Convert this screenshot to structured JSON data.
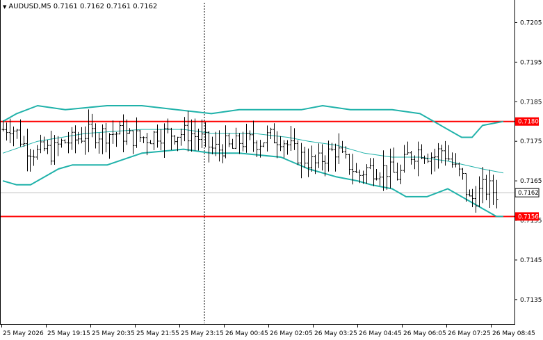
{
  "header": {
    "symbol": "AUDUSD,M5",
    "quote": "0.7161 0.7162 0.7161 0.7162",
    "dropdown_icon": "triangle-down"
  },
  "colors": {
    "background": "#ffffff",
    "frame": "#000000",
    "candle": "#000000",
    "bands": "#20b2aa",
    "level": "#ff0000",
    "current_line": "#c0c0c0"
  },
  "price_axis": {
    "ticks": [
      "0.7205",
      "0.7195",
      "0.7185",
      "0.7175",
      "0.7165",
      "0.7155",
      "0.7145",
      "0.7135"
    ],
    "ymin": 0.7129,
    "ymax": 0.721
  },
  "time_axis": {
    "labels": [
      "25 May 2026",
      "25 May 19:15",
      "25 May 20:35",
      "25 May 21:55",
      "25 May 23:15",
      "26 May 00:45",
      "26 May 02:05",
      "26 May 03:25",
      "26 May 04:45",
      "26 May 06:05",
      "26 May 07:25",
      "26 May 08:45"
    ]
  },
  "levels": [
    {
      "price": 0.718,
      "label": "0.7180"
    },
    {
      "price": 0.7156,
      "label": "0.7156"
    }
  ],
  "current_price": {
    "price": 0.7162,
    "label": "0.7162"
  },
  "period_separator": {
    "label": "26 May 00:00"
  },
  "chart_data": {
    "type": "candlestick",
    "symbol": "AUDUSD",
    "timeframe": "M5",
    "close_path": [
      [
        0,
        0.7178
      ],
      [
        10,
        0.7179
      ],
      [
        20,
        0.7177
      ],
      [
        30,
        0.7174
      ],
      [
        40,
        0.7173
      ],
      [
        50,
        0.7172
      ],
      [
        60,
        0.7173
      ],
      [
        70,
        0.7172
      ],
      [
        80,
        0.7174
      ],
      [
        90,
        0.7175
      ],
      [
        100,
        0.7175
      ],
      [
        110,
        0.7176
      ],
      [
        120,
        0.7177
      ],
      [
        130,
        0.7177
      ],
      [
        140,
        0.7177
      ],
      [
        150,
        0.7177
      ],
      [
        160,
        0.7177
      ],
      [
        170,
        0.7177
      ],
      [
        180,
        0.7176
      ],
      [
        190,
        0.7176
      ],
      [
        200,
        0.7176
      ],
      [
        210,
        0.7176
      ],
      [
        220,
        0.7177
      ],
      [
        230,
        0.7177
      ],
      [
        240,
        0.7177
      ],
      [
        250,
        0.7177
      ],
      [
        260,
        0.7177
      ],
      [
        270,
        0.7177
      ],
      [
        280,
        0.7176
      ],
      [
        290,
        0.7175
      ],
      [
        300,
        0.7173
      ],
      [
        310,
        0.7173
      ],
      [
        320,
        0.7174
      ],
      [
        330,
        0.7173
      ],
      [
        340,
        0.7175
      ],
      [
        350,
        0.7175
      ],
      [
        360,
        0.7175
      ],
      [
        370,
        0.7175
      ],
      [
        380,
        0.7176
      ],
      [
        390,
        0.7176
      ],
      [
        400,
        0.7176
      ],
      [
        410,
        0.7174
      ],
      [
        420,
        0.7172
      ],
      [
        430,
        0.7171
      ],
      [
        440,
        0.717
      ],
      [
        450,
        0.7169
      ],
      [
        460,
        0.7171
      ],
      [
        470,
        0.7172
      ],
      [
        480,
        0.7173
      ],
      [
        490,
        0.717
      ],
      [
        500,
        0.7169
      ],
      [
        510,
        0.7166
      ],
      [
        520,
        0.7168
      ],
      [
        530,
        0.7168
      ],
      [
        540,
        0.7168
      ],
      [
        550,
        0.7168
      ],
      [
        560,
        0.7167
      ],
      [
        570,
        0.7166
      ],
      [
        580,
        0.7171
      ],
      [
        590,
        0.7172
      ],
      [
        600,
        0.7173
      ],
      [
        610,
        0.7172
      ],
      [
        620,
        0.7171
      ],
      [
        630,
        0.7173
      ],
      [
        640,
        0.7171
      ],
      [
        650,
        0.7168
      ],
      [
        660,
        0.7166
      ],
      [
        670,
        0.716
      ],
      [
        680,
        0.7161
      ],
      [
        690,
        0.7163
      ],
      [
        700,
        0.7163
      ],
      [
        710,
        0.7162
      ]
    ],
    "bands": {
      "upper": [
        [
          0,
          0.718
        ],
        [
          20,
          0.7182
        ],
        [
          50,
          0.7184
        ],
        [
          90,
          0.7183
        ],
        [
          150,
          0.7184
        ],
        [
          200,
          0.7184
        ],
        [
          250,
          0.7183
        ],
        [
          300,
          0.7182
        ],
        [
          340,
          0.7183
        ],
        [
          400,
          0.7183
        ],
        [
          430,
          0.7183
        ],
        [
          460,
          0.7184
        ],
        [
          500,
          0.7183
        ],
        [
          560,
          0.7183
        ],
        [
          600,
          0.7182
        ],
        [
          630,
          0.7179
        ],
        [
          660,
          0.7176
        ],
        [
          675,
          0.7176
        ],
        [
          690,
          0.7179
        ],
        [
          720,
          0.718
        ]
      ],
      "middle": [
        [
          0,
          0.7172
        ],
        [
          50,
          0.7175
        ],
        [
          120,
          0.7177
        ],
        [
          200,
          0.7178
        ],
        [
          260,
          0.7178
        ],
        [
          300,
          0.7177
        ],
        [
          360,
          0.7177
        ],
        [
          410,
          0.7176
        ],
        [
          440,
          0.7175
        ],
        [
          480,
          0.7174
        ],
        [
          520,
          0.7172
        ],
        [
          560,
          0.7171
        ],
        [
          600,
          0.7171
        ],
        [
          640,
          0.717
        ],
        [
          690,
          0.7168
        ],
        [
          720,
          0.7167
        ]
      ],
      "lower": [
        [
          0,
          0.7165
        ],
        [
          20,
          0.7164
        ],
        [
          40,
          0.7164
        ],
        [
          80,
          0.7168
        ],
        [
          100,
          0.7169
        ],
        [
          150,
          0.7169
        ],
        [
          200,
          0.7172
        ],
        [
          260,
          0.7173
        ],
        [
          300,
          0.7172
        ],
        [
          340,
          0.7172
        ],
        [
          400,
          0.7171
        ],
        [
          440,
          0.7168
        ],
        [
          480,
          0.7166
        ],
        [
          510,
          0.7165
        ],
        [
          530,
          0.7164
        ],
        [
          560,
          0.7163
        ],
        [
          580,
          0.7161
        ],
        [
          610,
          0.7161
        ],
        [
          640,
          0.7163
        ],
        [
          660,
          0.7161
        ],
        [
          690,
          0.7158
        ],
        [
          710,
          0.7156
        ],
        [
          720,
          0.7156
        ]
      ]
    }
  }
}
